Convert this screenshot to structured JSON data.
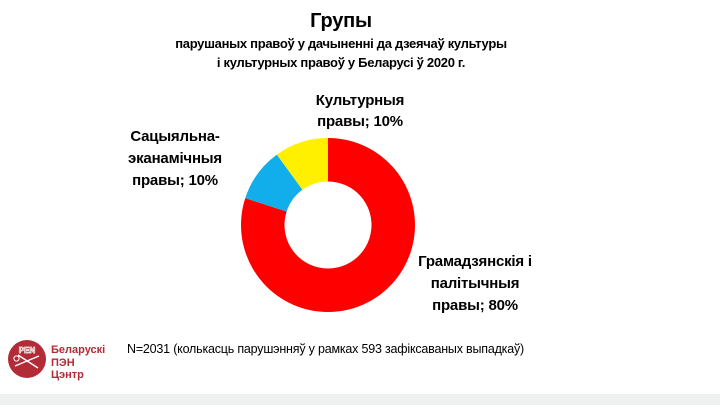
{
  "page": {
    "background": "#ffffff",
    "bottom_bar_color": "#eff0f0"
  },
  "title": {
    "main": "Групы",
    "sub_line1": "парушаных правоў у дачыненні да дзеячаў культуры",
    "sub_line2": "і культурных правоў у Беларусі ў 2020 г."
  },
  "chart_data": {
    "type": "pie",
    "subtype": "donut",
    "title": "Групы парушаных правоў у дачыненні да дзеячаў культуры і культурных правоў у Беларусі ў 2020 г.",
    "unit": "percent",
    "direction": "clockwise",
    "start_angle_deg": 0,
    "inner_radius_ratio": 0.5,
    "legend_position": "none",
    "slices": [
      {
        "label": "Грамадзянскія і палітычныя правы",
        "value": 80,
        "color": "#FF0000"
      },
      {
        "label": "Сацыяльна-эканамічныя правы",
        "value": 10,
        "color": "#12AEEC"
      },
      {
        "label": "Культурныя правы",
        "value": 10,
        "color": "#FFF000"
      }
    ],
    "annotation": "N=2031 (колькасць парушэнняў у рамках 593 зафіксаваных выпадкаў)"
  },
  "callouts": {
    "cultural": {
      "line1": "Культурныя",
      "line2": "правы; 10%"
    },
    "socioeconomic": {
      "line1": "Сацыяльна-",
      "line2": "эканамічныя",
      "line3": "правы; 10%"
    },
    "civil": {
      "line1": "Грамадзянскія і",
      "line2": "палітычныя",
      "line3": "правы; 80%"
    }
  },
  "footnote": "N=2031 (колькасць парушэнняў у рамках 593 зафіксаваных выпадкаў)",
  "logo": {
    "badge_text": "PEN",
    "name_line1": "Беларускі",
    "name_line2": "ПЭН",
    "name_line3": "Цэнтр",
    "color": "#B22B36"
  }
}
